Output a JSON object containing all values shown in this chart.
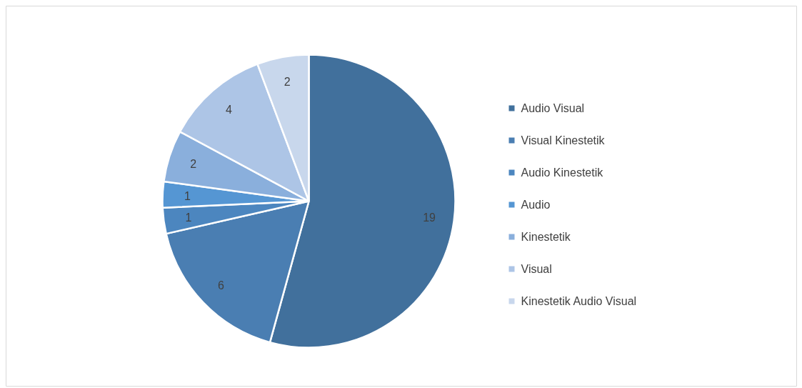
{
  "chart_data": {
    "type": "pie",
    "categories": [
      "Audio Visual",
      "Visual Kinestetik",
      "Audio Kinestetik",
      "Audio",
      "Kinestetik",
      "Visual",
      "Kinestetik Audio Visual"
    ],
    "values": [
      19,
      6,
      1,
      1,
      2,
      4,
      2
    ],
    "colors": [
      "#41709c",
      "#4a7eb2",
      "#4c86bf",
      "#5596d3",
      "#8aafdc",
      "#adc5e6",
      "#c8d7ec"
    ],
    "data_labels": true,
    "legend": "right"
  }
}
